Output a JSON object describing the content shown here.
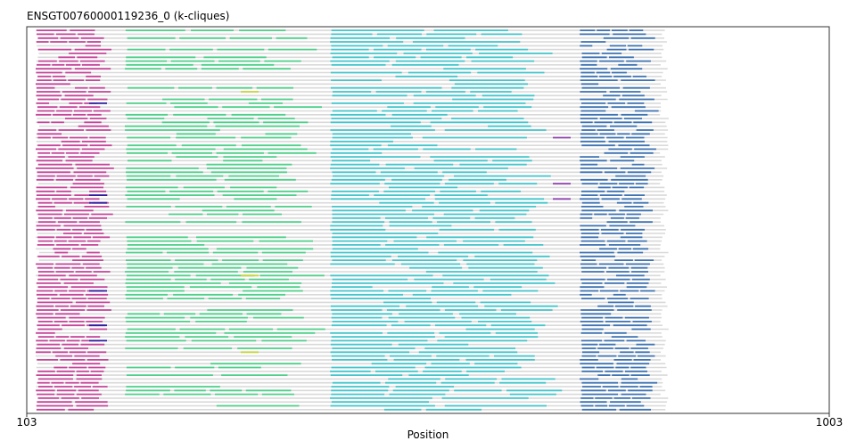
{
  "chart_data": {
    "type": "track-plot",
    "title": "ENSGT00760000119236_0 (k-cliques)",
    "xlabel": "Position",
    "x_ticks": [
      "103",
      "1003"
    ],
    "xlim": [
      103,
      1003
    ],
    "row_count": 100,
    "background_color": "#d9d9d9",
    "blocks": [
      {
        "name": "magenta",
        "color": "#c5469a",
        "start": 113,
        "end": 203,
        "rows": "all"
      },
      {
        "name": "green",
        "color": "#4fd08a",
        "start": 213,
        "end": 443,
        "rows": "most"
      },
      {
        "name": "cyan",
        "color": "#43c6cc",
        "start": 443,
        "end": 713,
        "rows": "all"
      },
      {
        "name": "blue",
        "color": "#3f73b2",
        "start": 723,
        "end": 813,
        "rows": "all"
      }
    ],
    "accent_colors": {
      "purple": "#7b2fbe",
      "violet": "#8e44ad",
      "yellow": "#c9d43a",
      "navy": "#2a1fa0"
    }
  }
}
